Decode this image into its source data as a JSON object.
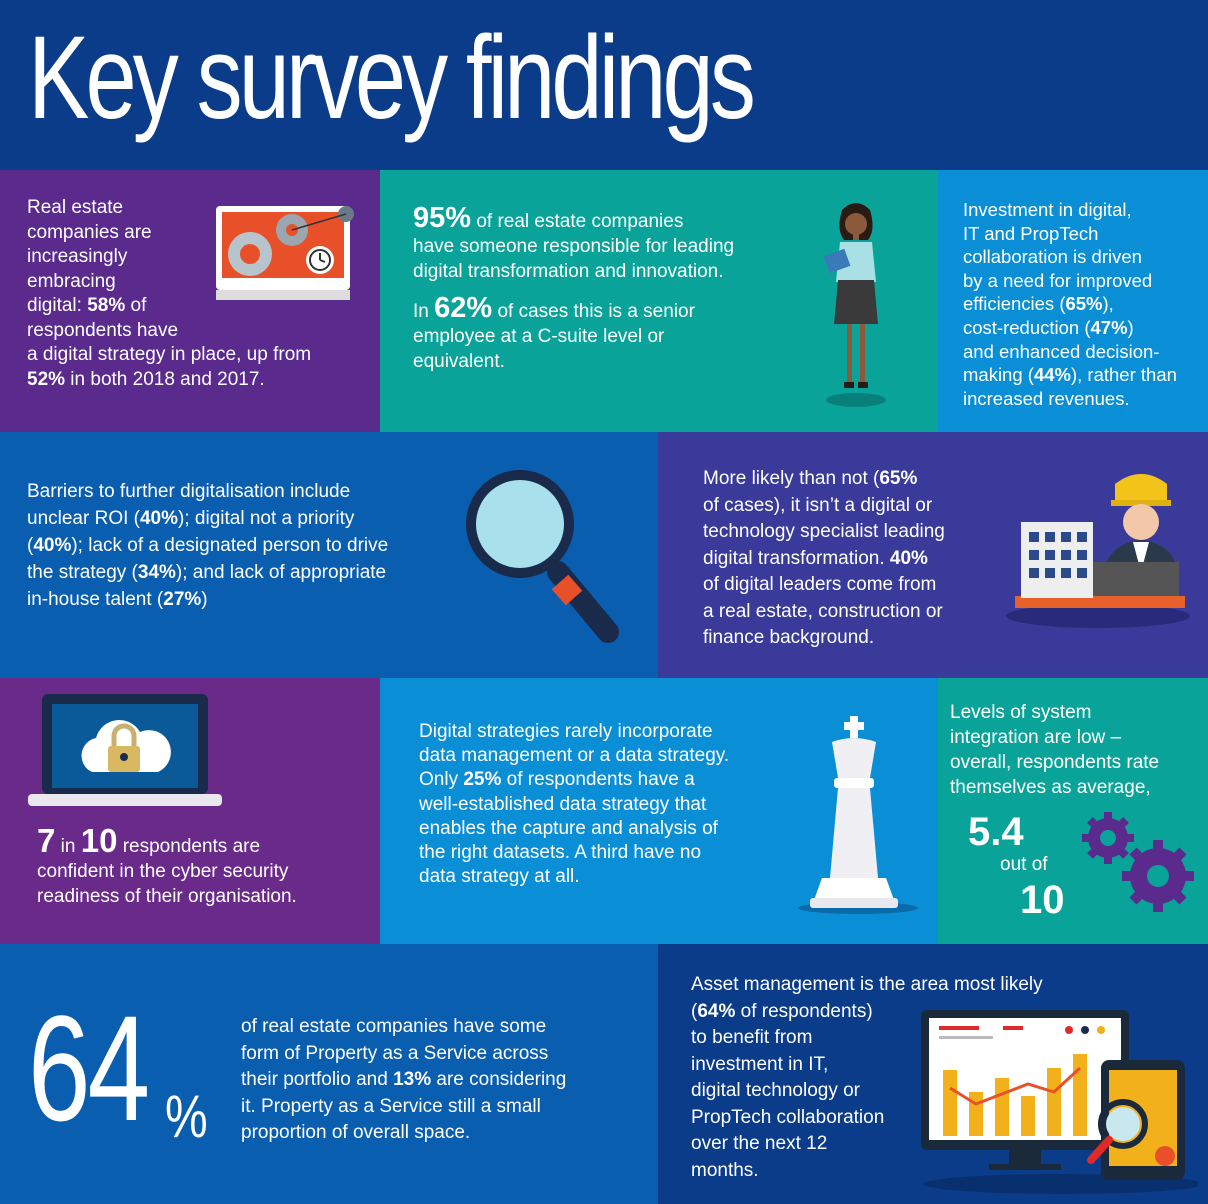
{
  "title": "Key survey findings",
  "colors": {
    "background": "#0a3c8a",
    "purple": "#5a2a8c",
    "teal": "#0aa39a",
    "sky": "#0a8fd6",
    "blue": "#0a5eb0",
    "indigo": "#3a3a9a"
  },
  "p1": {
    "a": "Real estate",
    "b": "companies are",
    "c": "increasingly",
    "d": "embracing",
    "e1": "digital: ",
    "e2": "58%",
    "e3": " of",
    "f": "respondents have",
    "g": "a digital strategy in place, up from",
    "h1": "52%",
    "h2": " in both 2018 and 2017."
  },
  "p2": {
    "a1": "95%",
    "a2": " of real estate companies",
    "b": "have someone responsible for leading",
    "c": "digital transformation and innovation.",
    "d1": "In ",
    "d2": "62%",
    "d3": " of cases this is a senior",
    "e": "employee at a C-suite level or",
    "f": "equivalent."
  },
  "p3": {
    "a": "Investment in digital,",
    "b": "IT and PropTech",
    "c": "collaboration is driven",
    "d": "by a need for improved",
    "e1": "efficiencies (",
    "e2": "65%",
    "e3": "),",
    "f1": "cost-reduction (",
    "f2": "47%",
    "f3": ")",
    "g": "and enhanced decision-",
    "h1": "making (",
    "h2": "44%",
    "h3": "), rather than",
    "i": "increased revenues."
  },
  "p4": {
    "a": "Barriers to further digitalisation include",
    "b1": "unclear ROI (",
    "b2": "40%",
    "b3": "); digital not a priority",
    "c1": "(",
    "c2": "40%",
    "c3": "); lack of a designated person to drive",
    "d1": "the strategy (",
    "d2": "34%",
    "d3": "); and lack of appropriate",
    "e1": "in-house talent (",
    "e2": "27%",
    "e3": ")"
  },
  "p5": {
    "a1": "More likely than not (",
    "a2": "65%",
    "b1": "of cases",
    "b2": "), it isn’t a digital or",
    "c": "technology specialist leading",
    "d1": "digital transformation. ",
    "d2": "40%",
    "e": "of digital leaders come from",
    "f": "a real estate, construction or",
    "g": "finance background."
  },
  "p6": {
    "n1": "7",
    "in": "in",
    "n2": "10",
    "a": "respondents are",
    "b": "confident in the cyber security",
    "c": "readiness of their organisation."
  },
  "p7": {
    "a": "Digital strategies rarely incorporate",
    "b": "data management or a data strategy.",
    "c1": "Only ",
    "c2": "25%",
    "c3": " of respondents have a",
    "d": "well-established data strategy that",
    "e": "enables the capture and analysis of",
    "f": "the right datasets. A third have no",
    "g": "data strategy at all."
  },
  "p8": {
    "a": "Levels of system",
    "b": "integration are low –",
    "c": "overall, respondents rate",
    "d": "themselves as average,",
    "score": "5.4",
    "outof": "out of",
    "max": "10"
  },
  "p9": {
    "num": "64",
    "pct": "%",
    "a": "of real estate companies have some",
    "b": "form of Property as a Service across",
    "c1": "their portfolio and ",
    "c2": "13%",
    "c3": " are considering",
    "d": "it. Property as a Service still a small",
    "e": "proportion of overall space."
  },
  "p10": {
    "a": "Asset management is the area most likely",
    "b1": "(",
    "b2": "64%",
    "b3": " of respondents)",
    "c": "to benefit from",
    "d": "investment in IT,",
    "e": "digital technology or",
    "f": "PropTech collaboration",
    "g": "over the next 12",
    "h": "months."
  },
  "icons": [
    "monitor-gears-icon",
    "businesswoman-icon",
    "magnifier-icon",
    "engineer-icon",
    "laptop-cloud-lock-icon",
    "chess-king-icon",
    "gears-icon",
    "monitor-chart-icon"
  ]
}
